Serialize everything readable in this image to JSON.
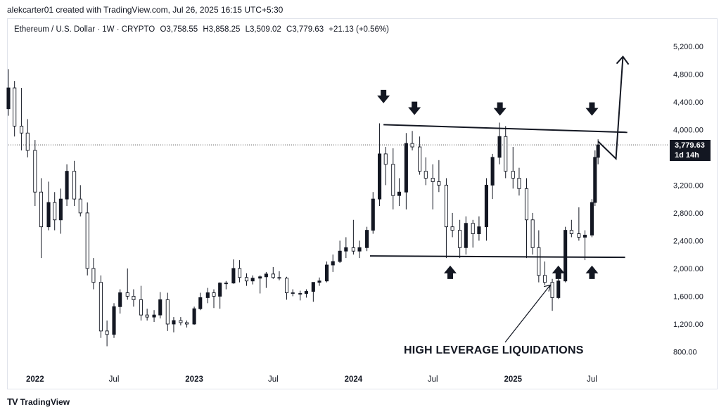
{
  "header": {
    "topline": "alekcarter01 created with TradingView.com, Jul 26, 2025 16:15 UTC+5:30"
  },
  "legend": {
    "symbol": "Ethereum / U.S. Dollar · 1W · CRYPTO",
    "open": "O3,758.55",
    "high": "H3,858.25",
    "low": "L3,509.02",
    "close": "C3,779.63",
    "change": "+21.13 (+0.56%)"
  },
  "price_tag": {
    "price": "3,779.63",
    "countdown": "1d 14h"
  },
  "annotation": "HIGH LEVERAGE LIQUIDATIONS",
  "footer": {
    "brand": "TradingView",
    "logo": "tradingview-logo"
  },
  "colors": {
    "candle": "#131722",
    "background": "#ffffff",
    "grid": "#e0e3eb"
  },
  "chart_data": {
    "type": "candlestick",
    "title": "",
    "xlabel": "",
    "ylabel": "",
    "ylim": [
      600,
      5400
    ],
    "y_ticks": [
      800,
      1200,
      1600,
      2000,
      2400,
      2800,
      3200,
      3600,
      4000,
      4400,
      4800,
      5200
    ],
    "y_tick_labels": [
      "800.00",
      "1,200.00",
      "1,600.00",
      "2,000.00",
      "2,400.00",
      "2,800.00",
      "3,200.00",
      "",
      "4,000.00",
      "4,400.00",
      "4,800.00",
      "5,200.00"
    ],
    "x_ticks": [
      {
        "date": "2022-01-01",
        "label": "2022",
        "year": true
      },
      {
        "date": "2022-07-01",
        "label": "Jul",
        "year": false
      },
      {
        "date": "2023-01-01",
        "label": "2023",
        "year": true
      },
      {
        "date": "2023-07-01",
        "label": "Jul",
        "year": false
      },
      {
        "date": "2024-01-01",
        "label": "2024",
        "year": true
      },
      {
        "date": "2024-07-01",
        "label": "Jul",
        "year": false
      },
      {
        "date": "2025-01-01",
        "label": "2025",
        "year": true
      },
      {
        "date": "2025-07-01",
        "label": "Jul",
        "year": false
      }
    ],
    "xlim": [
      "2021-11-01",
      "2025-12-15"
    ],
    "current_price": 3779.63,
    "series": [
      {
        "values": [
          [
            "2021-11-01",
            4300,
            4870,
            4200,
            4600
          ],
          [
            "2021-11-15",
            4600,
            4700,
            3900,
            4050
          ],
          [
            "2021-12-01",
            4050,
            4600,
            3700,
            3950
          ],
          [
            "2021-12-15",
            3950,
            4150,
            3600,
            3700
          ],
          [
            "2022-01-01",
            3700,
            3850,
            2900,
            3100
          ],
          [
            "2022-01-15",
            3100,
            3300,
            2150,
            2600
          ],
          [
            "2022-02-01",
            2600,
            3250,
            2550,
            2950
          ],
          [
            "2022-02-15",
            2950,
            3100,
            2550,
            2700
          ],
          [
            "2022-03-01",
            2700,
            3150,
            2500,
            3000
          ],
          [
            "2022-03-15",
            3000,
            3500,
            2900,
            3400
          ],
          [
            "2022-04-01",
            3400,
            3550,
            2900,
            3000
          ],
          [
            "2022-04-15",
            3000,
            3200,
            2750,
            2800
          ],
          [
            "2022-05-01",
            2800,
            2950,
            1900,
            2000
          ],
          [
            "2022-05-15",
            2000,
            2150,
            1700,
            1800
          ],
          [
            "2022-06-01",
            1800,
            1900,
            1000,
            1100
          ],
          [
            "2022-06-15",
            1100,
            1250,
            880,
            1050
          ],
          [
            "2022-07-01",
            1050,
            1500,
            1000,
            1450
          ],
          [
            "2022-07-15",
            1450,
            1700,
            1350,
            1650
          ],
          [
            "2022-08-01",
            1650,
            2000,
            1550,
            1600
          ],
          [
            "2022-08-15",
            1600,
            1700,
            1450,
            1550
          ],
          [
            "2022-09-01",
            1550,
            1750,
            1250,
            1330
          ],
          [
            "2022-09-15",
            1330,
            1420,
            1250,
            1300
          ],
          [
            "2022-10-01",
            1300,
            1400,
            1230,
            1330
          ],
          [
            "2022-10-15",
            1330,
            1660,
            1280,
            1550
          ],
          [
            "2022-11-01",
            1550,
            1650,
            1100,
            1200
          ],
          [
            "2022-11-15",
            1200,
            1300,
            1080,
            1250
          ],
          [
            "2022-12-01",
            1250,
            1300,
            1180,
            1220
          ],
          [
            "2022-12-15",
            1220,
            1250,
            1150,
            1200
          ],
          [
            "2023-01-01",
            1200,
            1450,
            1190,
            1420
          ],
          [
            "2023-01-15",
            1420,
            1650,
            1400,
            1580
          ],
          [
            "2023-02-01",
            1580,
            1720,
            1500,
            1650
          ],
          [
            "2023-02-15",
            1650,
            1700,
            1430,
            1600
          ],
          [
            "2023-03-01",
            1600,
            1800,
            1420,
            1790
          ],
          [
            "2023-03-15",
            1790,
            1820,
            1700,
            1790
          ],
          [
            "2023-04-01",
            1790,
            2130,
            1780,
            2000
          ],
          [
            "2023-04-15",
            2000,
            2120,
            1800,
            1870
          ],
          [
            "2023-05-01",
            1870,
            1930,
            1750,
            1820
          ],
          [
            "2023-05-15",
            1820,
            1900,
            1770,
            1860
          ],
          [
            "2023-06-01",
            1860,
            1900,
            1640,
            1880
          ],
          [
            "2023-06-15",
            1880,
            1950,
            1720,
            1920
          ],
          [
            "2023-07-01",
            1920,
            2020,
            1850,
            1870
          ],
          [
            "2023-07-15",
            1870,
            1960,
            1830,
            1860
          ],
          [
            "2023-08-01",
            1860,
            1880,
            1550,
            1650
          ],
          [
            "2023-08-15",
            1650,
            1700,
            1600,
            1640
          ],
          [
            "2023-09-01",
            1640,
            1680,
            1540,
            1640
          ],
          [
            "2023-09-15",
            1640,
            1700,
            1580,
            1670
          ],
          [
            "2023-10-01",
            1670,
            1800,
            1520,
            1800
          ],
          [
            "2023-10-15",
            1800,
            1870,
            1750,
            1820
          ],
          [
            "2023-11-01",
            1820,
            2100,
            1800,
            2050
          ],
          [
            "2023-11-15",
            2050,
            2200,
            1950,
            2100
          ],
          [
            "2023-12-01",
            2100,
            2400,
            2080,
            2250
          ],
          [
            "2023-12-15",
            2250,
            2450,
            2150,
            2300
          ],
          [
            "2024-01-01",
            2300,
            2700,
            2200,
            2250
          ],
          [
            "2024-01-15",
            2250,
            2400,
            2150,
            2300
          ],
          [
            "2024-02-01",
            2300,
            2600,
            2250,
            2550
          ],
          [
            "2024-02-15",
            2550,
            3100,
            2500,
            3000
          ],
          [
            "2024-03-01",
            3000,
            4090,
            2900,
            3650
          ],
          [
            "2024-03-15",
            3650,
            3750,
            3200,
            3500
          ],
          [
            "2024-04-01",
            3500,
            3730,
            2850,
            3050
          ],
          [
            "2024-04-15",
            3050,
            3300,
            2900,
            3100
          ],
          [
            "2024-05-01",
            3100,
            3950,
            2850,
            3800
          ],
          [
            "2024-05-15",
            3800,
            3980,
            3700,
            3750
          ],
          [
            "2024-06-01",
            3750,
            3900,
            3350,
            3400
          ],
          [
            "2024-06-15",
            3400,
            3600,
            3200,
            3300
          ],
          [
            "2024-07-01",
            3300,
            3500,
            2850,
            3250
          ],
          [
            "2024-07-15",
            3250,
            3560,
            3100,
            3200
          ],
          [
            "2024-08-01",
            3200,
            3300,
            2150,
            2600
          ],
          [
            "2024-08-15",
            2600,
            2800,
            2450,
            2550
          ],
          [
            "2024-09-01",
            2550,
            2700,
            2150,
            2300
          ],
          [
            "2024-09-15",
            2300,
            2750,
            2200,
            2650
          ],
          [
            "2024-10-01",
            2650,
            2700,
            2300,
            2500
          ],
          [
            "2024-10-15",
            2500,
            2750,
            2400,
            2600
          ],
          [
            "2024-11-01",
            2600,
            3300,
            2400,
            3200
          ],
          [
            "2024-11-15",
            3200,
            3650,
            3000,
            3600
          ],
          [
            "2024-12-01",
            3600,
            4100,
            3500,
            3900
          ],
          [
            "2024-12-15",
            3900,
            4050,
            3300,
            3400
          ],
          [
            "2025-01-01",
            3400,
            3750,
            3150,
            3300
          ],
          [
            "2025-01-15",
            3300,
            3450,
            3050,
            3150
          ],
          [
            "2025-02-01",
            3150,
            3300,
            2150,
            2700
          ],
          [
            "2025-02-15",
            2700,
            2800,
            2200,
            2300
          ],
          [
            "2025-03-01",
            2300,
            2550,
            1800,
            1900
          ],
          [
            "2025-03-15",
            1900,
            2100,
            1760,
            1800
          ],
          [
            "2025-04-01",
            1800,
            1850,
            1390,
            1580
          ],
          [
            "2025-04-15",
            1580,
            1850,
            1560,
            1820
          ],
          [
            "2025-05-01",
            1820,
            2600,
            1800,
            2550
          ],
          [
            "2025-05-15",
            2550,
            2700,
            2450,
            2500
          ],
          [
            "2025-06-01",
            2500,
            2880,
            2400,
            2450
          ],
          [
            "2025-06-15",
            2450,
            2550,
            2120,
            2480
          ],
          [
            "2025-07-01",
            2480,
            3000,
            2450,
            2950
          ],
          [
            "2025-07-08",
            2950,
            3700,
            2900,
            3600
          ],
          [
            "2025-07-15",
            3600,
            3860,
            3500,
            3780
          ]
        ]
      }
    ],
    "lines": [
      {
        "name": "",
        "points": [
          [
            "2024-03-10",
            4070
          ],
          [
            "2025-09-20",
            3960
          ]
        ]
      },
      {
        "name": "",
        "points": [
          [
            "2024-02-08",
            2180
          ],
          [
            "2025-09-15",
            2160
          ]
        ]
      },
      {
        "name": "",
        "points": [
          [
            "2025-07-15",
            3830
          ],
          [
            "2025-08-25",
            3580
          ],
          [
            "2025-09-10",
            5050
          ]
        ]
      }
    ],
    "markers": [
      {
        "dir": "down",
        "date": "2024-03-10",
        "price": 4450
      },
      {
        "dir": "down",
        "date": "2024-05-20",
        "price": 4280
      },
      {
        "dir": "down",
        "date": "2024-12-02",
        "price": 4270
      },
      {
        "dir": "down",
        "date": "2025-07-01",
        "price": 4270
      },
      {
        "dir": "up",
        "date": "2024-08-10",
        "price": 1950
      },
      {
        "dir": "up",
        "date": "2025-04-15",
        "price": 1950
      },
      {
        "dir": "up",
        "date": "2025-07-01",
        "price": 1950
      }
    ]
  }
}
